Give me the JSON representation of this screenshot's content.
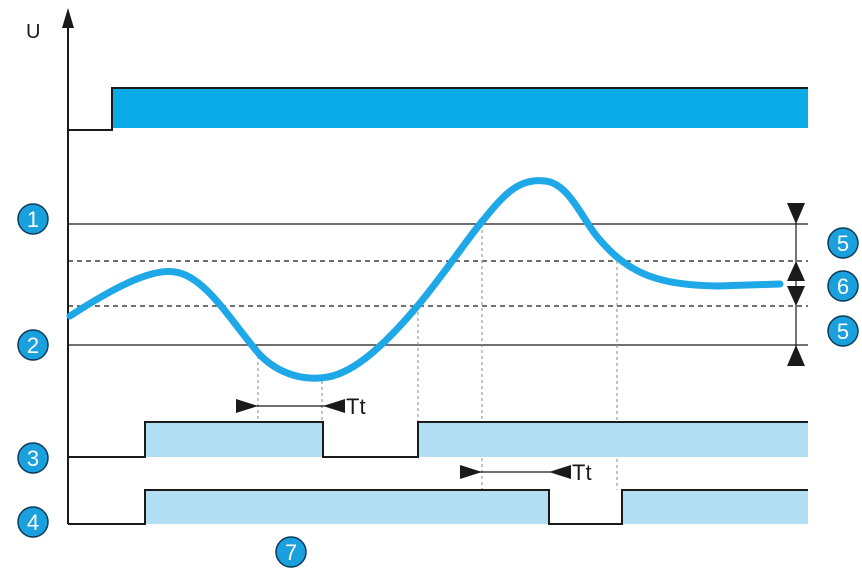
{
  "axis": {
    "y_label": "U"
  },
  "markers": {
    "m1": "1",
    "m2": "2",
    "m3": "3",
    "m4": "4",
    "m5_top": "5",
    "m6": "6",
    "m5_bottom": "5",
    "m7": "7"
  },
  "delays": {
    "tt_first": "Tt",
    "tt_second": "Tt"
  },
  "colors": {
    "supply_bar": "#0aaae6",
    "signal_curve": "#1ea8e8",
    "relay_fill": "#b2def4",
    "marker_fill": "#1aa0dd",
    "line": "#1a1a1a",
    "guide": "#888888"
  }
}
